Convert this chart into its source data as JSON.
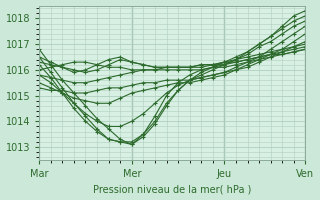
{
  "xlabel": "Pression niveau de la mer( hPa )",
  "bg_color": "#cce8d8",
  "plot_bg_color": "#d8efe4",
  "line_color": "#2d6b2d",
  "grid_color": "#b0cfbe",
  "vline_color": "#8aaa9a",
  "ylim": [
    1012.5,
    1018.5
  ],
  "yticks": [
    1013,
    1014,
    1015,
    1016,
    1017,
    1018
  ],
  "xtick_labels": [
    "Mar",
    "Mer",
    "Jeu",
    "Ven"
  ],
  "xtick_positions": [
    0,
    8,
    16,
    23
  ],
  "series": [
    [
      1016.8,
      1016.2,
      1015.6,
      1015.1,
      1014.6,
      1014.1,
      1013.7,
      1013.3,
      1013.1,
      1013.5,
      1014.2,
      1015.0,
      1015.5,
      1015.8,
      1016.0,
      1016.1,
      1016.2,
      1016.4,
      1016.7,
      1017.0,
      1017.3,
      1017.7,
      1018.1,
      1018.3
    ],
    [
      1016.5,
      1015.9,
      1015.3,
      1014.7,
      1014.2,
      1013.7,
      1013.3,
      1013.2,
      1013.1,
      1013.4,
      1013.9,
      1014.6,
      1015.2,
      1015.6,
      1015.9,
      1016.1,
      1016.3,
      1016.5,
      1016.7,
      1017.0,
      1017.3,
      1017.6,
      1017.9,
      1018.1
    ],
    [
      1016.2,
      1015.7,
      1015.1,
      1014.5,
      1014.0,
      1013.6,
      1013.3,
      1013.2,
      1013.2,
      1013.5,
      1014.0,
      1014.7,
      1015.2,
      1015.6,
      1015.8,
      1016.0,
      1016.2,
      1016.4,
      1016.6,
      1016.9,
      1017.1,
      1017.4,
      1017.7,
      1017.9
    ],
    [
      1015.8,
      1015.5,
      1015.1,
      1014.7,
      1014.3,
      1014.0,
      1013.8,
      1013.8,
      1014.0,
      1014.3,
      1014.7,
      1015.1,
      1015.4,
      1015.6,
      1015.7,
      1015.8,
      1015.9,
      1016.1,
      1016.3,
      1016.5,
      1016.8,
      1017.1,
      1017.4,
      1017.7
    ],
    [
      1015.5,
      1015.3,
      1015.1,
      1014.9,
      1014.8,
      1014.7,
      1014.7,
      1014.9,
      1015.1,
      1015.2,
      1015.3,
      1015.4,
      1015.5,
      1015.5,
      1015.6,
      1015.7,
      1015.8,
      1016.0,
      1016.2,
      1016.4,
      1016.6,
      1016.8,
      1017.1,
      1017.4
    ],
    [
      1015.3,
      1015.2,
      1015.2,
      1015.1,
      1015.1,
      1015.2,
      1015.3,
      1015.3,
      1015.4,
      1015.5,
      1015.5,
      1015.6,
      1015.6,
      1015.6,
      1015.7,
      1015.8,
      1015.9,
      1016.0,
      1016.1,
      1016.3,
      1016.5,
      1016.7,
      1016.9,
      1017.1
    ],
    [
      1016.0,
      1016.1,
      1016.2,
      1016.3,
      1016.3,
      1016.2,
      1016.1,
      1016.1,
      1016.0,
      1016.0,
      1016.0,
      1016.0,
      1016.0,
      1016.0,
      1016.0,
      1016.1,
      1016.1,
      1016.2,
      1016.3,
      1016.4,
      1016.5,
      1016.6,
      1016.7,
      1016.8
    ],
    [
      1016.3,
      1016.2,
      1016.1,
      1016.0,
      1015.9,
      1016.0,
      1016.2,
      1016.4,
      1016.3,
      1016.2,
      1016.1,
      1016.1,
      1016.1,
      1016.1,
      1016.1,
      1016.2,
      1016.2,
      1016.3,
      1016.4,
      1016.5,
      1016.6,
      1016.7,
      1016.8,
      1016.9
    ],
    [
      1016.5,
      1016.3,
      1016.1,
      1015.9,
      1016.0,
      1016.2,
      1016.4,
      1016.5,
      1016.3,
      1016.2,
      1016.1,
      1016.1,
      1016.1,
      1016.1,
      1016.2,
      1016.2,
      1016.3,
      1016.3,
      1016.4,
      1016.5,
      1016.6,
      1016.6,
      1016.7,
      1016.8
    ],
    [
      1015.8,
      1015.7,
      1015.6,
      1015.5,
      1015.5,
      1015.6,
      1015.7,
      1015.8,
      1015.9,
      1016.0,
      1016.0,
      1016.1,
      1016.1,
      1016.1,
      1016.2,
      1016.2,
      1016.3,
      1016.4,
      1016.5,
      1016.6,
      1016.7,
      1016.8,
      1016.9,
      1017.0
    ]
  ]
}
